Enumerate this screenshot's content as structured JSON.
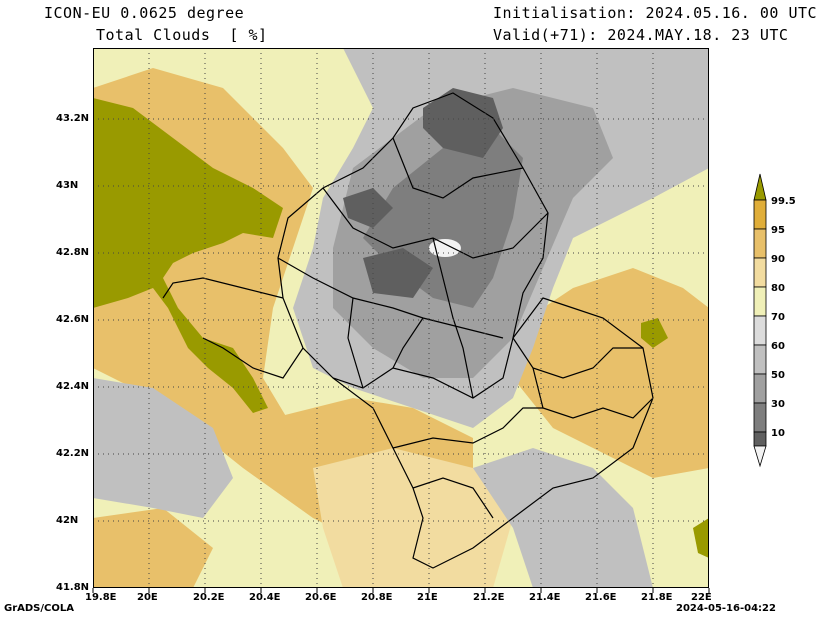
{
  "header": {
    "model": "ICON-EU 0.0625 degree",
    "field": "Total Clouds  [ %]",
    "init": "Initialisation: 2024.05.16. 00 UTC",
    "valid": "Valid(+71): 2024.MAY.18. 23 UTC"
  },
  "axes": {
    "lon_labels": [
      "19.8E",
      "20E",
      "20.2E",
      "20.4E",
      "20.6E",
      "20.8E",
      "21E",
      "21.2E",
      "21.4E",
      "21.6E",
      "21.8E",
      "22E"
    ],
    "lat_labels": [
      "43.2N",
      "43N",
      "42.8N",
      "42.6N",
      "42.4N",
      "42.2N",
      "42N",
      "41.8N"
    ]
  },
  "colorbar": {
    "levels": [
      "99.5",
      "95",
      "90",
      "80",
      "70",
      "60",
      "50",
      "30",
      "10"
    ],
    "colors": {
      "c_lt10": "#f2f2f2",
      "c_10_30": "#5f5f5f",
      "c_30_50": "#7e7e7e",
      "c_50_60": "#a0a0a0",
      "c_60_70": "#c0c0c0",
      "c_70_80": "#dcdcdc",
      "c_80_90": "#f0f0b8",
      "c_90_95": "#f2dca0",
      "c_95_99": "#e8c06a",
      "c_99_5": "#e0ae3a",
      "c_over": "#999a00"
    }
  },
  "footer": {
    "left": "GrADS/COLA",
    "right": "2024-05-16-04:22"
  }
}
